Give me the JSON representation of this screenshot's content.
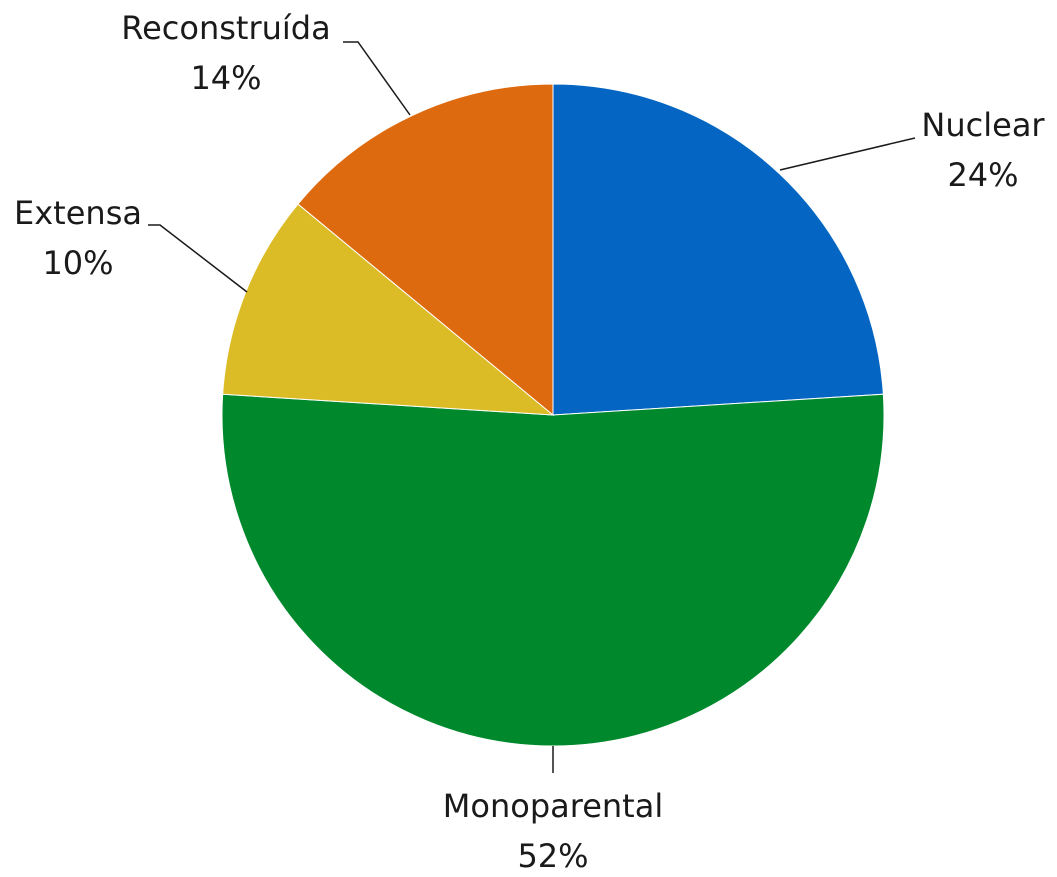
{
  "chart_data": {
    "type": "pie",
    "categories": [
      "Nuclear",
      "Monoparental",
      "Extensa",
      "Reconstruída"
    ],
    "values": [
      24,
      52,
      10,
      14
    ],
    "value_labels": [
      "24%",
      "52%",
      "10%",
      "14%"
    ],
    "colors": [
      "#0466c2",
      "#00892c",
      "#dcbc26",
      "#de6a10"
    ]
  }
}
